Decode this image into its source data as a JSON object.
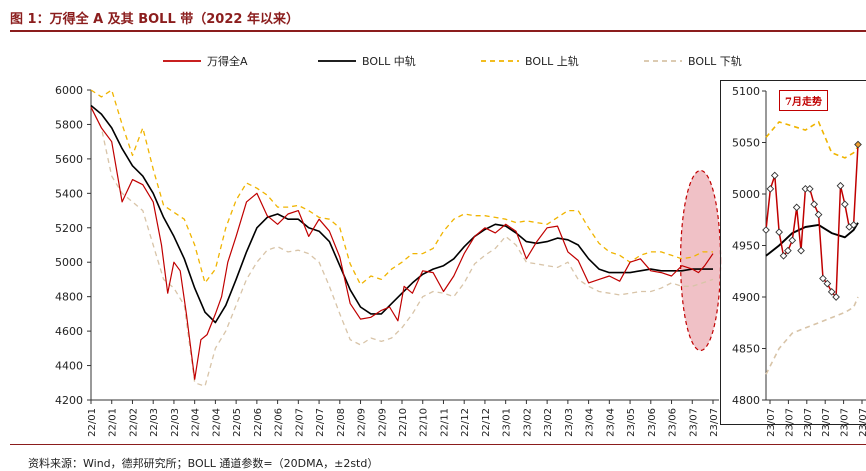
{
  "figure": {
    "title": "图 1：万得全 A 及其 BOLL 带（2022 年以来）",
    "source": "资料来源：Wind，德邦研究所；BOLL 通道参数=（20DMA，±2std）"
  },
  "colors": {
    "price": "#c00000",
    "mid": "#000000",
    "upper": "#f0b400",
    "lower": "#d8c4a8",
    "highlight": "#e8a0a8",
    "highlight_stroke": "#c00000",
    "marker_fill": "#ffffff",
    "last_marker_fill": "#f0a030",
    "axis": "#333333",
    "grid_text": "#222222"
  },
  "chart_data": [
    {
      "type": "line",
      "title": "万得全 A 及其 BOLL 带（2022 年以来）",
      "xlabel": "",
      "ylabel": "",
      "ylim": [
        4200,
        6000
      ],
      "yticks": [
        4200,
        4400,
        4600,
        4800,
        5000,
        5200,
        5400,
        5600,
        5800,
        6000
      ],
      "categories": [
        "22/01",
        "22/01",
        "22/02",
        "22/03",
        "22/03",
        "22/04",
        "22/04",
        "22/05",
        "22/06",
        "22/06",
        "22/07",
        "22/07",
        "22/08",
        "22/09",
        "22/09",
        "22/10",
        "22/10",
        "22/11",
        "22/12",
        "22/12",
        "23/01",
        "23/02",
        "23/02",
        "23/03",
        "23/04",
        "23/04",
        "23/05",
        "23/06",
        "23/06",
        "23/07",
        "23/07"
      ],
      "legend": {
        "position": "top"
      },
      "series": [
        {
          "name": "万得全A",
          "style": "solid",
          "x": [
            0,
            0.5,
            1,
            1.5,
            2,
            2.5,
            3,
            3.4,
            3.7,
            4,
            4.3,
            4.6,
            5,
            5.3,
            5.6,
            6,
            6.3,
            6.6,
            7,
            7.5,
            8,
            8.5,
            9,
            9.5,
            10,
            10.5,
            11,
            11.5,
            12,
            12.5,
            13,
            13.5,
            14,
            14.4,
            14.8,
            15.1,
            15.5,
            16,
            16.5,
            17,
            17.5,
            18,
            18.5,
            19,
            19.5,
            20,
            20.5,
            21,
            21.5,
            22,
            22.5,
            23,
            23.5,
            24,
            24.5,
            25,
            25.5,
            26,
            26.5,
            27,
            27.5,
            28,
            28.5,
            29,
            29.3,
            29.6,
            30
          ],
          "values": [
            5900,
            5780,
            5700,
            5350,
            5480,
            5450,
            5350,
            5100,
            4820,
            5000,
            4950,
            4700,
            4320,
            4550,
            4580,
            4700,
            4800,
            5000,
            5150,
            5350,
            5400,
            5270,
            5220,
            5280,
            5300,
            5150,
            5250,
            5180,
            5030,
            4760,
            4670,
            4680,
            4720,
            4740,
            4660,
            4860,
            4820,
            4950,
            4940,
            4830,
            4920,
            5050,
            5150,
            5200,
            5170,
            5220,
            5180,
            5020,
            5120,
            5200,
            5210,
            5060,
            5010,
            4880,
            4900,
            4920,
            4890,
            5000,
            5020,
            4950,
            4940,
            4920,
            4980,
            4960,
            4940,
            4980,
            5050
          ]
        },
        {
          "name": "BOLL 中轨",
          "style": "solid",
          "x": [
            0,
            0.5,
            1,
            1.5,
            2,
            2.5,
            3,
            3.5,
            4,
            4.5,
            5,
            5.5,
            6,
            6.5,
            7,
            7.5,
            8,
            8.5,
            9,
            9.5,
            10,
            10.5,
            11,
            11.5,
            12,
            12.5,
            13,
            13.5,
            14,
            14.5,
            15,
            15.5,
            16,
            16.5,
            17,
            17.5,
            18,
            18.5,
            19,
            19.5,
            20,
            20.5,
            21,
            21.5,
            22,
            22.5,
            23,
            23.5,
            24,
            24.5,
            25,
            25.5,
            26,
            26.5,
            27,
            27.5,
            28,
            28.5,
            29,
            29.5,
            30
          ],
          "values": [
            5910,
            5860,
            5780,
            5660,
            5560,
            5500,
            5400,
            5260,
            5150,
            5020,
            4850,
            4710,
            4650,
            4750,
            4900,
            5060,
            5200,
            5260,
            5280,
            5250,
            5250,
            5200,
            5180,
            5120,
            4980,
            4840,
            4740,
            4700,
            4700,
            4760,
            4820,
            4880,
            4930,
            4960,
            4980,
            5020,
            5090,
            5150,
            5190,
            5220,
            5210,
            5170,
            5120,
            5110,
            5120,
            5140,
            5130,
            5100,
            5020,
            4960,
            4940,
            4940,
            4940,
            4950,
            4960,
            4950,
            4950,
            4950,
            4960,
            4960,
            4960
          ]
        },
        {
          "name": "BOLL 上轨",
          "style": "dashed",
          "x": [
            0,
            0.5,
            1,
            1.5,
            2,
            2.5,
            3,
            3.5,
            4,
            4.5,
            5,
            5.5,
            6,
            6.5,
            7,
            7.5,
            8,
            8.5,
            9,
            9.5,
            10,
            10.5,
            11,
            11.5,
            12,
            12.5,
            13,
            13.5,
            14,
            14.5,
            15,
            15.5,
            16,
            16.5,
            17,
            17.5,
            18,
            18.5,
            19,
            19.5,
            20,
            20.5,
            21,
            21.5,
            22,
            22.5,
            23,
            23.5,
            24,
            24.5,
            25,
            25.5,
            26,
            26.5,
            27,
            27.5,
            28,
            28.5,
            29,
            29.5,
            30
          ],
          "values": [
            6000,
            5960,
            6000,
            5800,
            5620,
            5780,
            5540,
            5330,
            5290,
            5250,
            5100,
            4880,
            4960,
            5200,
            5360,
            5460,
            5430,
            5390,
            5320,
            5320,
            5330,
            5300,
            5260,
            5250,
            5200,
            4990,
            4870,
            4920,
            4900,
            4960,
            5000,
            5050,
            5050,
            5080,
            5180,
            5250,
            5280,
            5270,
            5270,
            5260,
            5250,
            5230,
            5240,
            5230,
            5220,
            5260,
            5300,
            5300,
            5200,
            5110,
            5060,
            5040,
            5000,
            5040,
            5060,
            5060,
            5040,
            5020,
            5030,
            5060,
            5060
          ]
        },
        {
          "name": "BOLL 下轨",
          "style": "dashed",
          "x": [
            0,
            0.5,
            1,
            1.5,
            2,
            2.5,
            3,
            3.5,
            4,
            4.5,
            5,
            5.5,
            6,
            6.5,
            7,
            7.5,
            8,
            8.5,
            9,
            9.5,
            10,
            10.5,
            11,
            11.5,
            12,
            12.5,
            13,
            13.5,
            14,
            14.5,
            15,
            15.5,
            16,
            16.5,
            17,
            17.5,
            18,
            18.5,
            19,
            19.5,
            20,
            20.5,
            21,
            21.5,
            22,
            22.5,
            23,
            23.5,
            24,
            24.5,
            25,
            25.5,
            26,
            26.5,
            27,
            27.5,
            28,
            28.5,
            29,
            29.5,
            30
          ],
          "values": [
            5900,
            5780,
            5500,
            5400,
            5350,
            5300,
            5100,
            4900,
            4850,
            4750,
            4300,
            4280,
            4500,
            4600,
            4750,
            4900,
            5000,
            5070,
            5090,
            5060,
            5070,
            5050,
            5000,
            4860,
            4700,
            4550,
            4520,
            4560,
            4540,
            4560,
            4620,
            4700,
            4800,
            4830,
            4820,
            4800,
            4880,
            4990,
            5040,
            5080,
            5150,
            5100,
            5000,
            4990,
            4980,
            4970,
            5000,
            4900,
            4860,
            4830,
            4820,
            4810,
            4820,
            4830,
            4830,
            4850,
            4880,
            4860,
            4860,
            4880,
            4900
          ]
        }
      ],
      "annotation": "7月高亮区域"
    },
    {
      "type": "line",
      "title": "7月走势",
      "xlabel": "",
      "ylabel": "",
      "ylim": [
        4800,
        5100
      ],
      "yticks": [
        4800,
        4850,
        4900,
        4950,
        5000,
        5050,
        5100
      ],
      "categories": [
        "23/07",
        "23/07",
        "23/07",
        "23/07",
        "23/07",
        "23/07"
      ],
      "series": [
        {
          "name": "万得全A",
          "style": "solid",
          "markers": true,
          "x": [
            0,
            1,
            2,
            3,
            4,
            5,
            6,
            7,
            8,
            9,
            10,
            11,
            12,
            13,
            14,
            15,
            16,
            17,
            18,
            19,
            20,
            21
          ],
          "values": [
            4965,
            5005,
            5018,
            4963,
            4940,
            4945,
            4955,
            4987,
            4945,
            5005,
            5005,
            4990,
            4980,
            4918,
            4913,
            4905,
            4900,
            5008,
            4990,
            4968,
            4970,
            5048
          ]
        },
        {
          "name": "BOLL 中轨",
          "style": "solid",
          "markers": false,
          "x": [
            0,
            3,
            6,
            9,
            12,
            15,
            18,
            20,
            21
          ],
          "values": [
            4940,
            4950,
            4962,
            4968,
            4970,
            4962,
            4958,
            4965,
            4972
          ]
        },
        {
          "name": "BOLL 上轨",
          "style": "dashed",
          "markers": false,
          "x": [
            0,
            3,
            6,
            9,
            12,
            15,
            18,
            20,
            21
          ],
          "values": [
            5055,
            5070,
            5066,
            5062,
            5070,
            5040,
            5035,
            5040,
            5046
          ]
        },
        {
          "name": "BOLL 下轨",
          "style": "dashed",
          "markers": false,
          "x": [
            0,
            3,
            6,
            9,
            12,
            15,
            18,
            20,
            21
          ],
          "values": [
            4825,
            4850,
            4865,
            4870,
            4875,
            4880,
            4885,
            4890,
            4900
          ]
        }
      ]
    }
  ]
}
